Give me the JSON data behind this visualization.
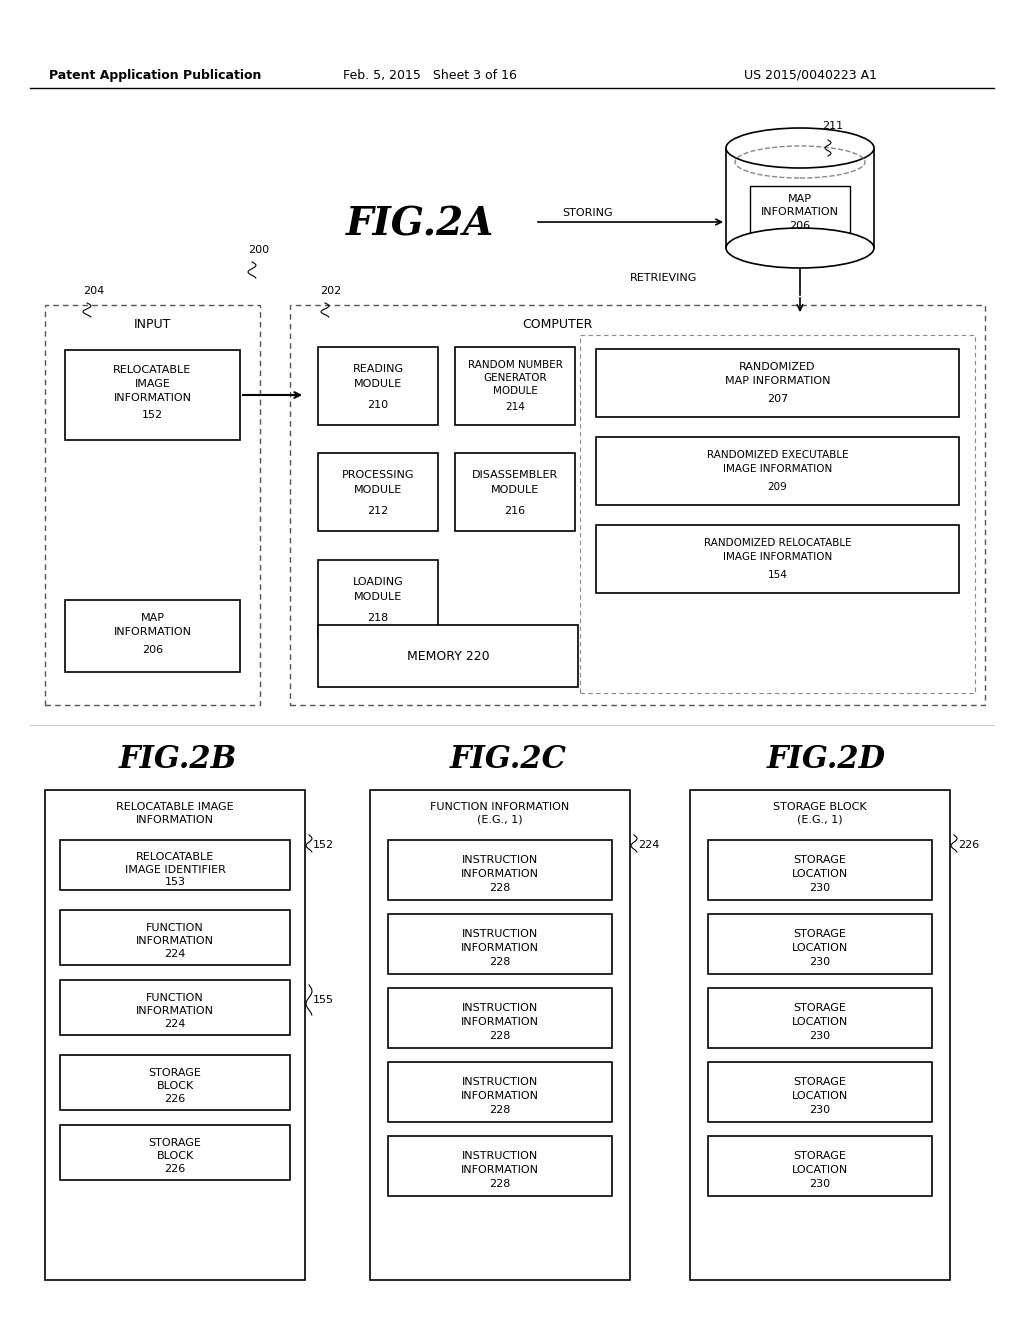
{
  "bg_color": "#ffffff",
  "header_left": "Patent Application Publication",
  "header_mid": "Feb. 5, 2015   Sheet 3 of 16",
  "header_right": "US 2015/0040223 A1",
  "fig2a_title": "FIG.2A",
  "fig2b_title": "FIG.2B",
  "fig2c_title": "FIG.2C",
  "fig2d_title": "FIG.2D"
}
